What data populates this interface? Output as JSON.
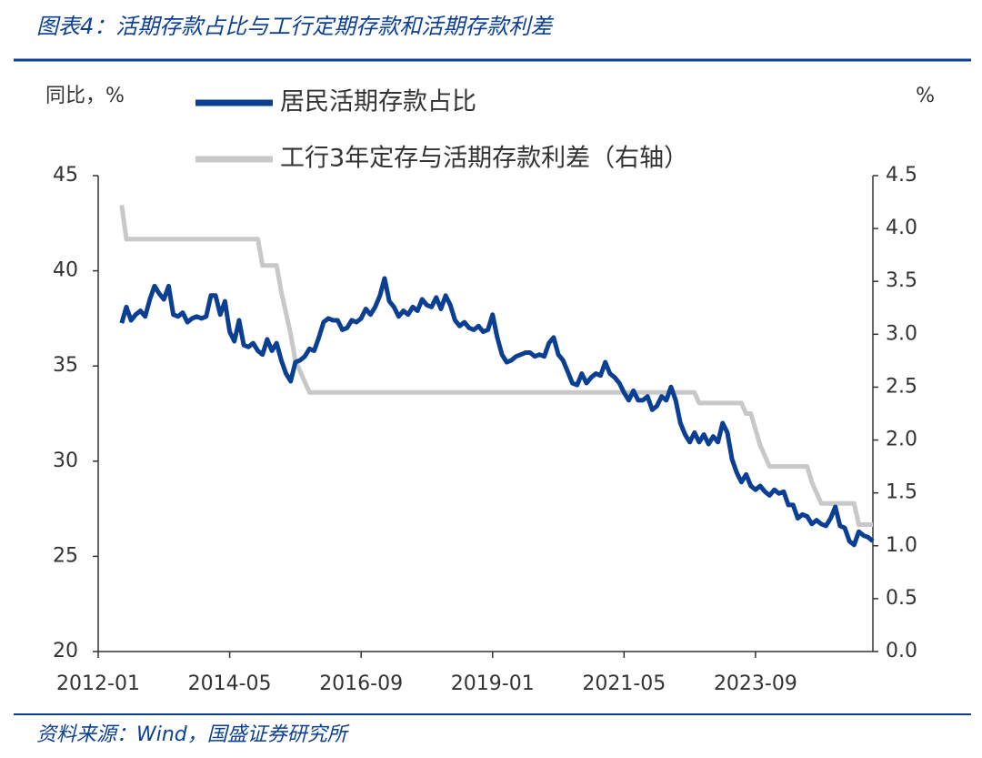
{
  "chart_data": {
    "type": "line",
    "title": "图表4：活期存款占比与工行定期存款和活期存款利差",
    "source": "资料来源：Wind，国盛证券研究所",
    "ylabel": "同比，%",
    "y2label": "%",
    "x": [
      "2012-06",
      "2012-07",
      "2012-08",
      "2012-09",
      "2012-10",
      "2012-11",
      "2012-12",
      "2013-01",
      "2013-02",
      "2013-03",
      "2013-04",
      "2013-05",
      "2013-06",
      "2013-07",
      "2013-08",
      "2013-09",
      "2013-10",
      "2013-11",
      "2013-12",
      "2014-01",
      "2014-02",
      "2014-03",
      "2014-04",
      "2014-05",
      "2014-06",
      "2014-07",
      "2014-08",
      "2014-09",
      "2014-10",
      "2014-11",
      "2014-12",
      "2015-01",
      "2015-02",
      "2015-03",
      "2015-04",
      "2015-05",
      "2015-06",
      "2015-07",
      "2015-08",
      "2015-09",
      "2015-10",
      "2015-11",
      "2015-12",
      "2016-01",
      "2016-02",
      "2016-03",
      "2016-04",
      "2016-05",
      "2016-06",
      "2016-07",
      "2016-08",
      "2016-09",
      "2016-10",
      "2016-11",
      "2016-12",
      "2017-01",
      "2017-02",
      "2017-03",
      "2017-04",
      "2017-05",
      "2017-06",
      "2017-07",
      "2017-08",
      "2017-09",
      "2017-10",
      "2017-11",
      "2017-12",
      "2018-01",
      "2018-02",
      "2018-03",
      "2018-04",
      "2018-05",
      "2018-06",
      "2018-07",
      "2018-08",
      "2018-09",
      "2018-10",
      "2018-11",
      "2018-12",
      "2019-01",
      "2019-02",
      "2019-03",
      "2019-04",
      "2019-05",
      "2019-06",
      "2019-07",
      "2019-08",
      "2019-09",
      "2019-10",
      "2019-11",
      "2019-12",
      "2020-01",
      "2020-02",
      "2020-03",
      "2020-04",
      "2020-05",
      "2020-06",
      "2020-07",
      "2020-08",
      "2020-09",
      "2020-10",
      "2020-11",
      "2020-12",
      "2021-01",
      "2021-02",
      "2021-03",
      "2021-04",
      "2021-05",
      "2021-06",
      "2021-07",
      "2021-08",
      "2021-09",
      "2021-10",
      "2021-11",
      "2021-12",
      "2022-01",
      "2022-02",
      "2022-03",
      "2022-04",
      "2022-05",
      "2022-06",
      "2022-07",
      "2022-08",
      "2022-09",
      "2022-10",
      "2022-11",
      "2022-12",
      "2023-01",
      "2023-02",
      "2023-03",
      "2023-04",
      "2023-05",
      "2023-06",
      "2023-07",
      "2023-08",
      "2023-09",
      "2023-10",
      "2023-11",
      "2023-12",
      "2024-01",
      "2024-02",
      "2024-03",
      "2024-04",
      "2024-05",
      "2024-06",
      "2024-07",
      "2024-08",
      "2024-09",
      "2024-10",
      "2024-11",
      "2024-12",
      "2025-01",
      "2025-02",
      "2025-03",
      "2025-04",
      "2025-05",
      "2025-06",
      "2025-07",
      "2025-08",
      "2025-09",
      "2025-10"
    ],
    "series": [
      {
        "name": "居民活期存款占比",
        "color": "#0b3f94",
        "axis": "y",
        "values": [
          37.25,
          38.1,
          37.4,
          37.7,
          37.9,
          37.6,
          38.5,
          39.2,
          38.8,
          38.5,
          39.2,
          37.7,
          37.6,
          37.8,
          37.3,
          37.5,
          37.6,
          37.5,
          37.6,
          38.7,
          38.7,
          37.7,
          38.4,
          36.8,
          36.3,
          37.4,
          36.1,
          36.0,
          36.2,
          35.8,
          35.6,
          36.4,
          35.8,
          36.2,
          35.3,
          34.6,
          34.2,
          35.2,
          35.3,
          35.5,
          35.9,
          35.8,
          36.5,
          37.3,
          37.5,
          37.4,
          37.4,
          36.9,
          37.0,
          37.4,
          37.3,
          37.5,
          38.0,
          37.7,
          38.1,
          38.7,
          39.6,
          38.4,
          38.1,
          37.6,
          37.9,
          37.7,
          38.1,
          37.9,
          38.5,
          38.2,
          38.1,
          38.6,
          38.0,
          38.7,
          38.2,
          37.4,
          37.1,
          37.3,
          37.0,
          36.9,
          37.1,
          36.8,
          36.9,
          37.7,
          36.5,
          35.6,
          35.2,
          35.3,
          35.5,
          35.6,
          35.7,
          35.7,
          35.5,
          35.6,
          35.5,
          36.2,
          36.5,
          35.6,
          35.3,
          34.7,
          34.1,
          34.0,
          34.6,
          34.1,
          34.4,
          34.6,
          34.5,
          35.2,
          34.6,
          34.4,
          34.1,
          33.6,
          33.2,
          33.7,
          33.2,
          33.2,
          33.4,
          32.7,
          32.9,
          33.4,
          33.2,
          33.9,
          33.2,
          32.0,
          31.4,
          31.0,
          31.5,
          31.0,
          31.4,
          30.9,
          31.3,
          31.0,
          32.0,
          31.5,
          30.1,
          29.4,
          28.9,
          29.3,
          28.7,
          28.5,
          28.7,
          28.4,
          28.2,
          28.5,
          28.3,
          28.4,
          27.7,
          27.7,
          27.0,
          27.2,
          27.1,
          26.7,
          26.9,
          26.7,
          26.6,
          27.0,
          27.6,
          26.6,
          26.5,
          25.8,
          25.6,
          26.3,
          26.1,
          26.0,
          25.8
        ]
      },
      {
        "name": "工行3年定存与活期存款利差（右轴）",
        "color": "#c8c8c8",
        "axis": "y2",
        "values": [
          4.22,
          3.9,
          3.9,
          3.9,
          3.9,
          3.9,
          3.9,
          3.9,
          3.9,
          3.9,
          3.9,
          3.9,
          3.9,
          3.9,
          3.9,
          3.9,
          3.9,
          3.9,
          3.9,
          3.9,
          3.9,
          3.9,
          3.9,
          3.9,
          3.9,
          3.9,
          3.9,
          3.9,
          3.9,
          3.9,
          3.65,
          3.65,
          3.65,
          3.65,
          3.4,
          3.2,
          3.0,
          2.75,
          2.65,
          2.55,
          2.45,
          2.45,
          2.45,
          2.45,
          2.45,
          2.45,
          2.45,
          2.45,
          2.45,
          2.45,
          2.45,
          2.45,
          2.45,
          2.45,
          2.45,
          2.45,
          2.45,
          2.45,
          2.45,
          2.45,
          2.45,
          2.45,
          2.45,
          2.45,
          2.45,
          2.45,
          2.45,
          2.45,
          2.45,
          2.45,
          2.45,
          2.45,
          2.45,
          2.45,
          2.45,
          2.45,
          2.45,
          2.45,
          2.45,
          2.45,
          2.45,
          2.45,
          2.45,
          2.45,
          2.45,
          2.45,
          2.45,
          2.45,
          2.45,
          2.45,
          2.45,
          2.45,
          2.45,
          2.45,
          2.45,
          2.45,
          2.45,
          2.45,
          2.45,
          2.45,
          2.45,
          2.45,
          2.45,
          2.45,
          2.45,
          2.45,
          2.45,
          2.45,
          2.45,
          2.45,
          2.45,
          2.45,
          2.45,
          2.45,
          2.45,
          2.45,
          2.45,
          2.45,
          2.45,
          2.45,
          2.45,
          2.45,
          2.45,
          2.35,
          2.35,
          2.35,
          2.35,
          2.35,
          2.35,
          2.35,
          2.35,
          2.35,
          2.35,
          2.25,
          2.25,
          2.1,
          1.95,
          1.85,
          1.75,
          1.75,
          1.75,
          1.75,
          1.75,
          1.75,
          1.75,
          1.75,
          1.75,
          1.6,
          1.5,
          1.4,
          1.4,
          1.4,
          1.4,
          1.4,
          1.4,
          1.4,
          1.4,
          1.2,
          1.2,
          1.2,
          1.2
        ]
      }
    ],
    "xlim": [
      "2012-01",
      "2025-10"
    ],
    "xticks": [
      "2012-01",
      "2014-05",
      "2016-09",
      "2019-01",
      "2021-05",
      "2023-09"
    ],
    "ylim": [
      20,
      45
    ],
    "yticks": [
      20,
      25,
      30,
      35,
      40,
      45
    ],
    "y2lim": [
      0,
      4.5
    ],
    "y2ticks": [
      {
        "value": 0,
        "label": "0.0"
      },
      0.5,
      {
        "value": 1,
        "label": "1.0"
      },
      1.5,
      {
        "value": 2,
        "label": "2.0"
      },
      2.5,
      {
        "value": 3,
        "label": "3.0"
      },
      3.5,
      {
        "value": 4,
        "label": "4.0"
      },
      4.5
    ]
  }
}
